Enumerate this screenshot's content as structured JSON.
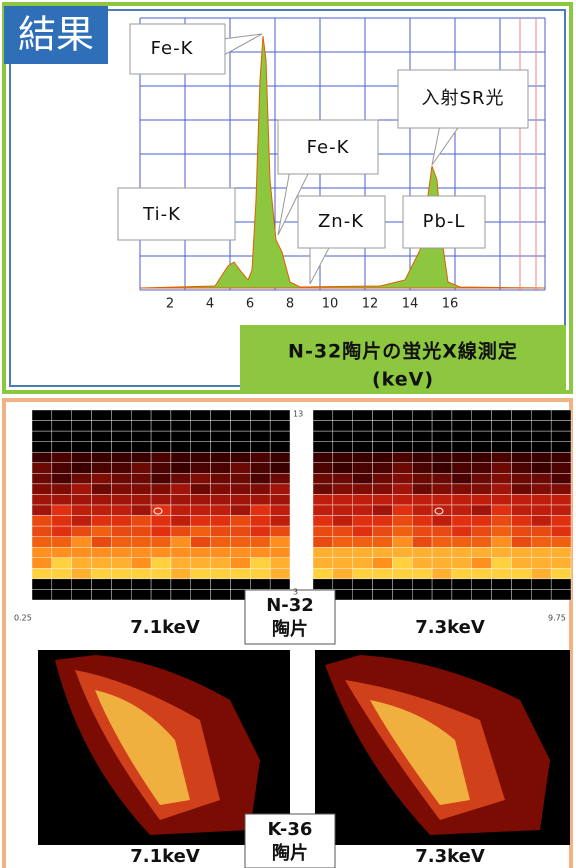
{
  "header": {
    "title": "結果"
  },
  "spectrum": {
    "x_tick_labels": [
      "2",
      "4",
      "6",
      "8",
      "10",
      "12",
      "14",
      "16"
    ],
    "callouts": [
      "Fe-K",
      "入射SR光",
      "Fe-K",
      "Ti-K",
      "Zn-K",
      "Pb-L"
    ],
    "caption": [
      "N-32陶片の蛍光X線測定",
      "(keV)"
    ]
  },
  "maps": [
    {
      "sample": [
        "N-32",
        "陶片"
      ],
      "panels": [
        "7.1keV",
        "7.3keV"
      ],
      "axis_labels": [
        "0.25",
        "13",
        "3",
        "9.75"
      ]
    },
    {
      "sample": [
        "K-36",
        "陶片"
      ],
      "panels": [
        "7.1keV",
        "7.3keV"
      ]
    }
  ]
}
